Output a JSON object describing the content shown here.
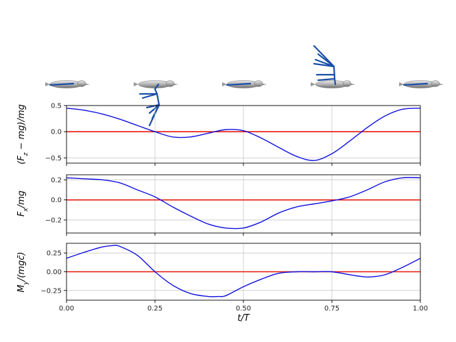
{
  "chart_data": [
    {
      "type": "line",
      "ylabel": "(F_z − mg)/mg",
      "ylim": [
        -0.6,
        0.5
      ],
      "yticks": [
        -0.5,
        0.0,
        0.5
      ],
      "ytick_labels": [
        "−0.5",
        "0.0",
        "0.5"
      ],
      "xlim": [
        0,
        1
      ],
      "grid": true,
      "reference_line": 0,
      "series": [
        {
          "x": [
            0.0,
            0.05,
            0.1,
            0.15,
            0.2,
            0.25,
            0.3,
            0.35,
            0.4,
            0.45,
            0.5,
            0.55,
            0.6,
            0.65,
            0.7,
            0.75,
            0.8,
            0.85,
            0.9,
            0.95,
            1.0
          ],
          "values": [
            0.45,
            0.41,
            0.34,
            0.24,
            0.12,
            0.0,
            -0.1,
            -0.1,
            -0.03,
            0.04,
            0.02,
            -0.12,
            -0.3,
            -0.47,
            -0.55,
            -0.42,
            -0.18,
            0.08,
            0.3,
            0.43,
            0.45
          ]
        }
      ]
    },
    {
      "type": "line",
      "ylabel": "F_x/mg",
      "ylim": [
        -0.33,
        0.25
      ],
      "yticks": [
        -0.2,
        0.0,
        0.2
      ],
      "ytick_labels": [
        "−0.2",
        "0.0",
        "0.2"
      ],
      "xlim": [
        0,
        1
      ],
      "grid": true,
      "reference_line": 0,
      "series": [
        {
          "x": [
            0.0,
            0.05,
            0.1,
            0.15,
            0.2,
            0.25,
            0.3,
            0.35,
            0.4,
            0.45,
            0.5,
            0.55,
            0.6,
            0.65,
            0.7,
            0.75,
            0.8,
            0.85,
            0.9,
            0.95,
            1.0
          ],
          "values": [
            0.22,
            0.21,
            0.2,
            0.17,
            0.1,
            0.03,
            -0.07,
            -0.16,
            -0.24,
            -0.28,
            -0.28,
            -0.22,
            -0.13,
            -0.07,
            -0.04,
            -0.01,
            0.03,
            0.1,
            0.18,
            0.22,
            0.22
          ]
        }
      ]
    },
    {
      "type": "line",
      "ylabel": "M_y/(mgc̄)",
      "xlabel": "t/T",
      "ylim": [
        -0.38,
        0.38
      ],
      "yticks": [
        -0.25,
        0.0,
        0.25
      ],
      "ytick_labels": [
        "−0.25",
        "0.00",
        "0.25"
      ],
      "xticks": [
        0.0,
        0.25,
        0.5,
        0.75,
        1.0
      ],
      "xtick_labels": [
        "0.00",
        "0.25",
        "0.50",
        "0.75",
        "1.00"
      ],
      "xlim": [
        0,
        1
      ],
      "grid": true,
      "reference_line": 0,
      "series": [
        {
          "x": [
            0.0,
            0.05,
            0.1,
            0.13,
            0.15,
            0.2,
            0.25,
            0.3,
            0.35,
            0.4,
            0.43,
            0.45,
            0.5,
            0.55,
            0.6,
            0.65,
            0.7,
            0.75,
            0.8,
            0.85,
            0.9,
            0.95,
            1.0
          ],
          "values": [
            0.18,
            0.26,
            0.33,
            0.35,
            0.34,
            0.22,
            0.0,
            -0.18,
            -0.29,
            -0.33,
            -0.33,
            -0.32,
            -0.2,
            -0.1,
            -0.02,
            0.0,
            0.0,
            0.0,
            -0.04,
            -0.07,
            -0.04,
            0.06,
            0.18
          ]
        }
      ]
    }
  ],
  "bird_icons": [
    {
      "phase": 0.0,
      "wing": "level"
    },
    {
      "phase": 0.25,
      "wing": "down"
    },
    {
      "phase": 0.5,
      "wing": "level"
    },
    {
      "phase": 0.75,
      "wing": "up"
    },
    {
      "phase": 1.0,
      "wing": "level"
    }
  ]
}
